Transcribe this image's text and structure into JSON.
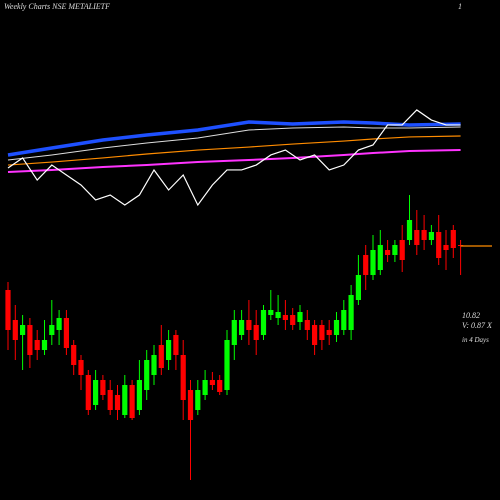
{
  "chart_data": [
    {
      "type": "candlestick",
      "title": "Weekly Charts NSE METALIETF",
      "corner_label": "1",
      "last_price": 10.82,
      "volume_note": "V: 0.87 X",
      "days_note": "in 4 Days",
      "up_color": "#00ff00",
      "down_color": "#ff0000",
      "last_line_color": "#ff8c00",
      "ylim": [
        5.74,
        15.74
      ],
      "open": [
        9.94,
        9.34,
        9.04,
        9.24,
        8.94,
        8.74,
        9.04,
        9.14,
        9.38,
        8.84,
        8.54,
        8.24,
        7.64,
        8.14,
        7.94,
        7.84,
        7.44,
        8.04,
        7.54,
        7.94,
        8.24,
        8.84,
        8.54,
        9.04,
        8.64,
        7.94,
        7.54,
        7.84,
        8.14,
        8.14,
        7.94,
        8.84,
        9.04,
        9.34,
        9.24,
        9.04,
        9.44,
        9.38,
        9.44,
        9.44,
        9.3,
        9.34,
        9.24,
        9.24,
        9.14,
        9.04,
        9.14,
        9.14,
        9.74,
        10.64,
        10.24,
        10.34,
        10.74,
        10.64,
        10.94,
        10.94,
        11.14,
        11.14,
        10.94,
        11.1,
        10.84,
        11.14,
        10.84
      ],
      "high": [
        10.1,
        9.64,
        9.44,
        9.38,
        9.14,
        9.34,
        9.74,
        9.54,
        9.54,
        8.94,
        8.64,
        8.34,
        8.34,
        8.24,
        8.14,
        8.04,
        8.24,
        8.14,
        8.54,
        8.74,
        8.84,
        9.24,
        9.14,
        9.14,
        8.94,
        8.14,
        8.14,
        8.34,
        8.3,
        8.24,
        9.14,
        9.54,
        9.54,
        9.74,
        9.54,
        9.64,
        9.94,
        9.84,
        9.74,
        9.58,
        9.64,
        9.54,
        9.34,
        9.34,
        9.34,
        9.5,
        9.74,
        10.04,
        10.64,
        10.84,
        11.04,
        11.14,
        10.94,
        10.94,
        11.24,
        11.84,
        11.54,
        11.44,
        11.24,
        11.44,
        11.14,
        11.24,
        10.94
      ],
      "low": [
        8.74,
        8.54,
        8.34,
        8.38,
        8.54,
        8.64,
        8.84,
        8.84,
        8.64,
        8.24,
        7.94,
        7.44,
        7.54,
        7.74,
        7.44,
        7.34,
        7.38,
        7.34,
        7.44,
        7.74,
        8.04,
        8.24,
        8.34,
        8.34,
        7.34,
        6.14,
        7.44,
        7.74,
        7.94,
        7.84,
        7.84,
        8.54,
        8.94,
        8.84,
        8.64,
        8.94,
        9.34,
        9.24,
        9.14,
        9.14,
        9.14,
        8.94,
        8.64,
        8.74,
        8.84,
        8.9,
        9.04,
        8.94,
        9.64,
        9.94,
        10.14,
        10.24,
        10.5,
        10.5,
        10.3,
        10.84,
        10.64,
        10.74,
        10.84,
        10.44,
        10.34,
        10.58,
        10.24
      ],
      "close": [
        9.14,
        8.94,
        9.24,
        8.64,
        8.74,
        8.94,
        9.24,
        9.38,
        8.78,
        8.44,
        8.24,
        7.54,
        8.14,
        7.84,
        7.54,
        7.54,
        8.04,
        7.38,
        8.14,
        8.54,
        8.64,
        8.38,
        8.94,
        8.64,
        7.74,
        7.34,
        7.94,
        8.14,
        8.04,
        7.9,
        8.94,
        9.34,
        9.34,
        9.14,
        8.94,
        9.54,
        9.54,
        9.5,
        9.34,
        9.24,
        9.5,
        9.14,
        8.84,
        8.94,
        9.04,
        9.34,
        9.54,
        9.84,
        10.24,
        10.24,
        10.74,
        10.84,
        10.64,
        10.84,
        10.54,
        11.34,
        10.84,
        10.94,
        11.1,
        10.58,
        10.74,
        10.78,
        10.82
      ]
    },
    {
      "type": "line",
      "xlim": [
        1,
        63
      ],
      "ylim": [
        0,
        100
      ],
      "series": [
        {
          "name": "blue",
          "color": "#1e50ff",
          "width": 3.5,
          "x": [
            1,
            7,
            14,
            20,
            27,
            34,
            40,
            47,
            51,
            56,
            63
          ],
          "values": [
            54.2,
            60,
            66.7,
            70.8,
            75,
            81.7,
            80,
            81.7,
            80.8,
            79.2,
            80
          ]
        },
        {
          "name": "white",
          "color": "#dddddd",
          "width": 1,
          "x": [
            1,
            7,
            14,
            20,
            27,
            34,
            40,
            47,
            51,
            56,
            63
          ],
          "values": [
            50,
            54.2,
            60,
            64.2,
            68.3,
            75,
            76.7,
            77.5,
            76.7,
            76.7,
            77.5
          ]
        },
        {
          "name": "orange",
          "color": "#ff8c00",
          "width": 1.2,
          "x": [
            1,
            7,
            14,
            20,
            27,
            34,
            40,
            47,
            51,
            56,
            63
          ],
          "values": [
            45.8,
            48.3,
            51.7,
            55,
            58.3,
            60.8,
            63.3,
            65.8,
            67.5,
            69.2,
            70
          ]
        },
        {
          "name": "magenta",
          "color": "#ff33ff",
          "width": 2,
          "x": [
            1,
            7,
            14,
            20,
            27,
            34,
            40,
            47,
            51,
            56,
            63
          ],
          "values": [
            40,
            41.7,
            44.2,
            45.8,
            48.3,
            50,
            51.7,
            54.2,
            55.8,
            57.5,
            58.3
          ]
        },
        {
          "name": "oscillator",
          "color": "#ffffff",
          "width": 1.2,
          "x": [
            1,
            3,
            5,
            7,
            9,
            11,
            13,
            15,
            17,
            19,
            21,
            23,
            25,
            27,
            29,
            31,
            33,
            35,
            37,
            39,
            41,
            43,
            45,
            47,
            49,
            51,
            53,
            55,
            57,
            59,
            61,
            63
          ],
          "values": [
            43.3,
            51.7,
            33.3,
            45.8,
            37.5,
            29.2,
            16.7,
            20.8,
            12.5,
            20.8,
            41.7,
            25,
            37.5,
            12.5,
            29.2,
            41.7,
            41.7,
            45.8,
            54.2,
            58.3,
            50,
            54.2,
            41.7,
            45.8,
            58.3,
            62.5,
            79.2,
            79.2,
            91.7,
            83.3,
            79.2,
            79.2
          ]
        }
      ]
    }
  ]
}
